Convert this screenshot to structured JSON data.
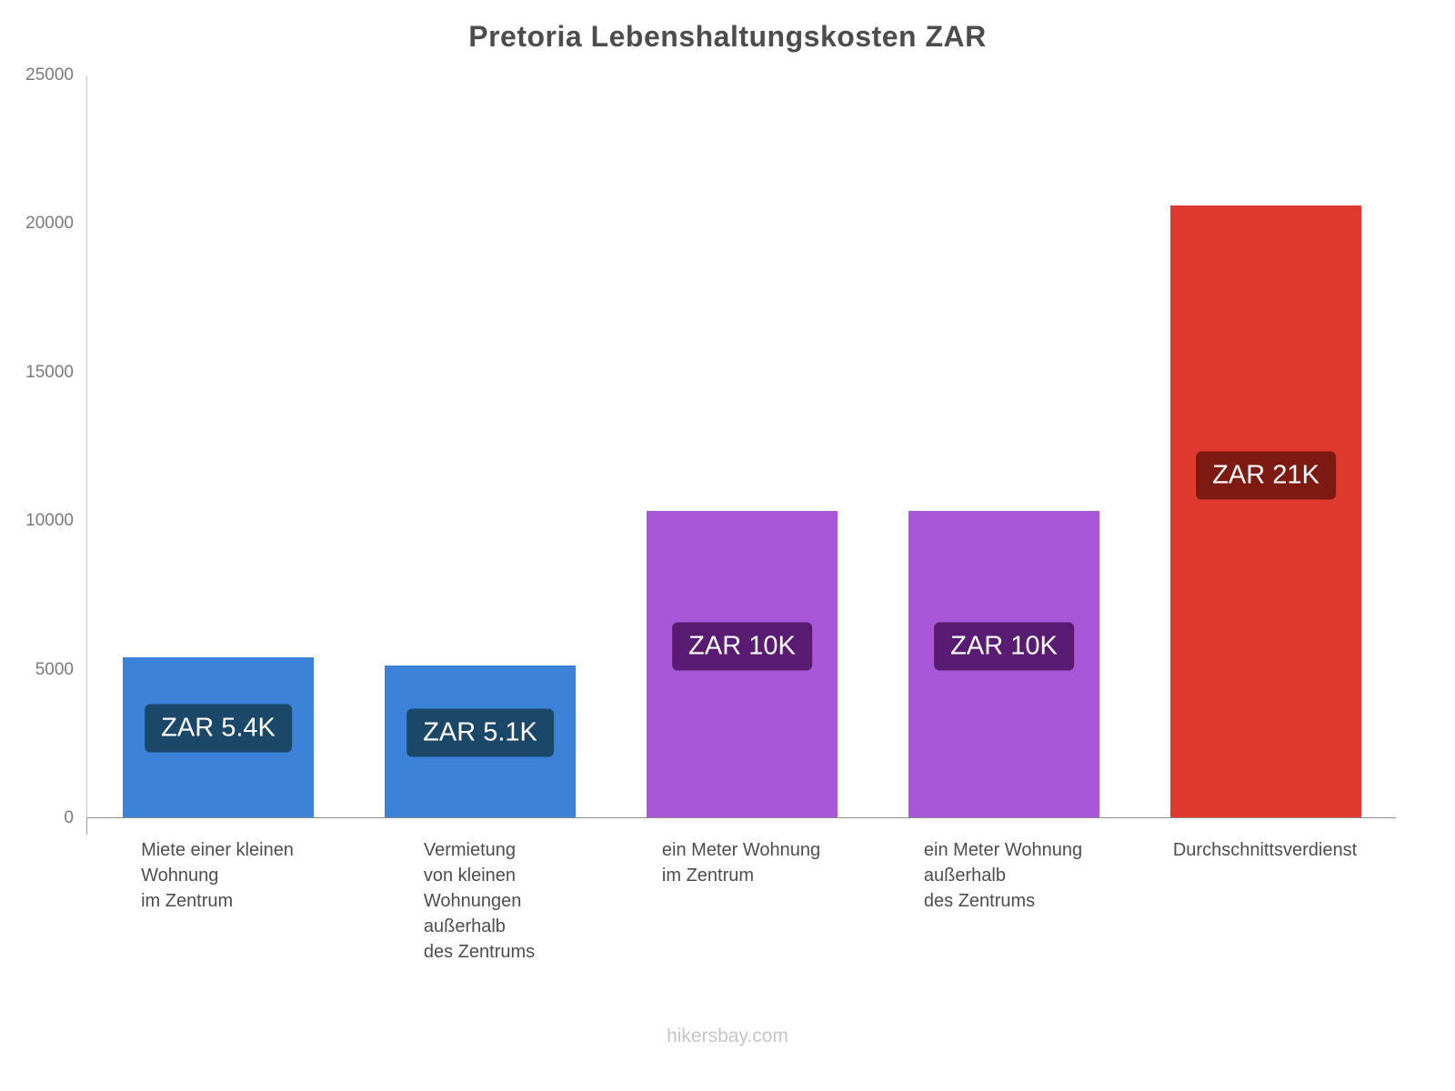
{
  "footer": "hikersbay.com",
  "chart_data": {
    "type": "bar",
    "title": "Pretoria Lebenshaltungskosten ZAR",
    "xlabel": "",
    "ylabel": "",
    "ylim": [
      0,
      25000
    ],
    "yticks": [
      0,
      5000,
      10000,
      15000,
      20000,
      25000
    ],
    "grid": false,
    "legend": false,
    "categories": [
      [
        "Miete einer kleinen",
        "Wohnung",
        "im Zentrum"
      ],
      [
        "Vermietung",
        "von kleinen",
        "Wohnungen",
        "außerhalb",
        "des Zentrums"
      ],
      [
        "ein Meter Wohnung",
        "im Zentrum"
      ],
      [
        "ein Meter Wohnung",
        "außerhalb",
        "des Zentrums"
      ],
      [
        "Durchschnittsverdienst"
      ]
    ],
    "values": [
      5400,
      5100,
      10300,
      10300,
      20600
    ],
    "value_labels": [
      "ZAR 5.4K",
      "ZAR 5.1K",
      "ZAR 10K",
      "ZAR 10K",
      "ZAR 21K"
    ],
    "bar_colors": [
      "#3b82d8",
      "#3b82d8",
      "#a757d8",
      "#a757d8",
      "#e0392f"
    ],
    "value_label_colors": [
      "#1b4768",
      "#1b4768",
      "#5a1b72",
      "#5a1b72",
      "#7d1a12"
    ]
  }
}
